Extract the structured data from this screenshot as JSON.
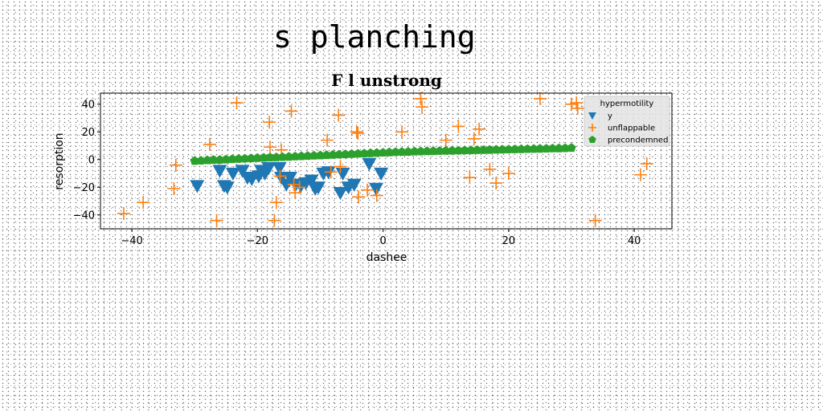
{
  "page": {
    "suptitle": "s planching"
  },
  "chart_data": {
    "type": "scatter",
    "title": "F l unstrong",
    "xlabel": "dashee",
    "ylabel": "resorption",
    "xlim": [
      -45,
      46
    ],
    "ylim": [
      -50,
      48
    ],
    "xticks": [
      -40,
      -20,
      0,
      20,
      40
    ],
    "yticks": [
      -40,
      -20,
      0,
      20,
      40
    ],
    "grid": false,
    "legend": {
      "title": "hypermotility",
      "placement": "top-right"
    },
    "series": [
      {
        "name": "y",
        "marker": "triangle-down",
        "color": "#1f77b4",
        "x": [
          -29.6,
          -26,
          -25.3,
          -24.8,
          -23.9,
          -22.4,
          -21.6,
          -20.9,
          -19.8,
          -19.4,
          -18.8,
          -18.2,
          -16.5,
          -16.2,
          -15.4,
          -14.8,
          -13.9,
          -13.1,
          -12.3,
          -11.4,
          -10.8,
          -10.3,
          -9.5,
          -8.7,
          -6.8,
          -6.4,
          -5.5,
          -4.6,
          -2.2,
          -1.1,
          -0.3
        ],
        "y": [
          -19,
          -8,
          -19,
          -20,
          -10,
          -8,
          -13,
          -14,
          -12,
          -8,
          -10,
          -6,
          -6,
          -13,
          -18,
          -13,
          -18,
          -19,
          -17,
          -15,
          -21,
          -20,
          -10,
          -9,
          -24,
          -10,
          -20,
          -18,
          -3,
          -21,
          -10
        ]
      },
      {
        "name": "unflappable",
        "marker": "plus",
        "color": "#ff7f0e",
        "x": [
          -41.3,
          -38.2,
          -33.3,
          -33,
          -27.6,
          -26.5,
          -23.3,
          -18.1,
          -18,
          -17.3,
          -17,
          -16.4,
          -16.2,
          -14.6,
          -14.2,
          -14,
          -13.3,
          -8.9,
          -8.3,
          -7.1,
          -6.8,
          -4.2,
          -4,
          -3.9,
          -2.5,
          -1,
          3,
          6,
          6.2,
          10,
          12,
          13.8,
          14.5,
          15.3,
          17,
          18,
          20,
          25,
          30,
          30.8,
          31,
          33.8,
          41,
          42
        ],
        "y": [
          -39,
          -31,
          -21,
          -4,
          11,
          -44,
          41,
          27,
          9,
          -44,
          -31,
          -12,
          7,
          35,
          -18,
          -24,
          -20,
          14,
          -9,
          32,
          -5,
          20,
          19,
          -27,
          -22,
          -26,
          20,
          44,
          38,
          14,
          24,
          -13,
          15,
          22,
          -7,
          -17,
          -10,
          44,
          40,
          41,
          37,
          -44,
          -11,
          -3
        ]
      },
      {
        "name": "precondemned",
        "marker": "pentagon",
        "color": "#2ca02c",
        "x": [
          -30,
          -29,
          -28,
          -27,
          -26,
          -25,
          -24,
          -23,
          -22,
          -21,
          -20,
          -19,
          -18,
          -17,
          -16,
          -15,
          -14,
          -13,
          -12,
          -11,
          -10,
          -9,
          -8,
          -7,
          -6,
          -5,
          -4,
          -3,
          -2,
          -1,
          0,
          1,
          2,
          3,
          4,
          5,
          6,
          7,
          8,
          9,
          10,
          11,
          12,
          13,
          14,
          15,
          16,
          17,
          18,
          19,
          20,
          21,
          22,
          23,
          24,
          25,
          26,
          27,
          28,
          29,
          30
        ],
        "y": [
          -1,
          -0.8,
          -0.5,
          -0.3,
          -0.2,
          0,
          0.3,
          0.5,
          0.7,
          0.9,
          1.1,
          1.3,
          1.5,
          1.6,
          1.8,
          2,
          2.2,
          2.4,
          2.6,
          2.8,
          3,
          3.2,
          3.4,
          3.6,
          3.8,
          4,
          4.2,
          4.4,
          4.6,
          4.8,
          5,
          5.2,
          5.4,
          5.5,
          5.6,
          5.8,
          5.9,
          6,
          6.1,
          6.2,
          6.3,
          6.4,
          6.5,
          6.6,
          6.7,
          6.8,
          6.9,
          7,
          7.1,
          7.2,
          7.3,
          7.4,
          7.5,
          7.6,
          7.7,
          7.8,
          7.9,
          8,
          8.1,
          8.2,
          8.4
        ]
      }
    ]
  }
}
